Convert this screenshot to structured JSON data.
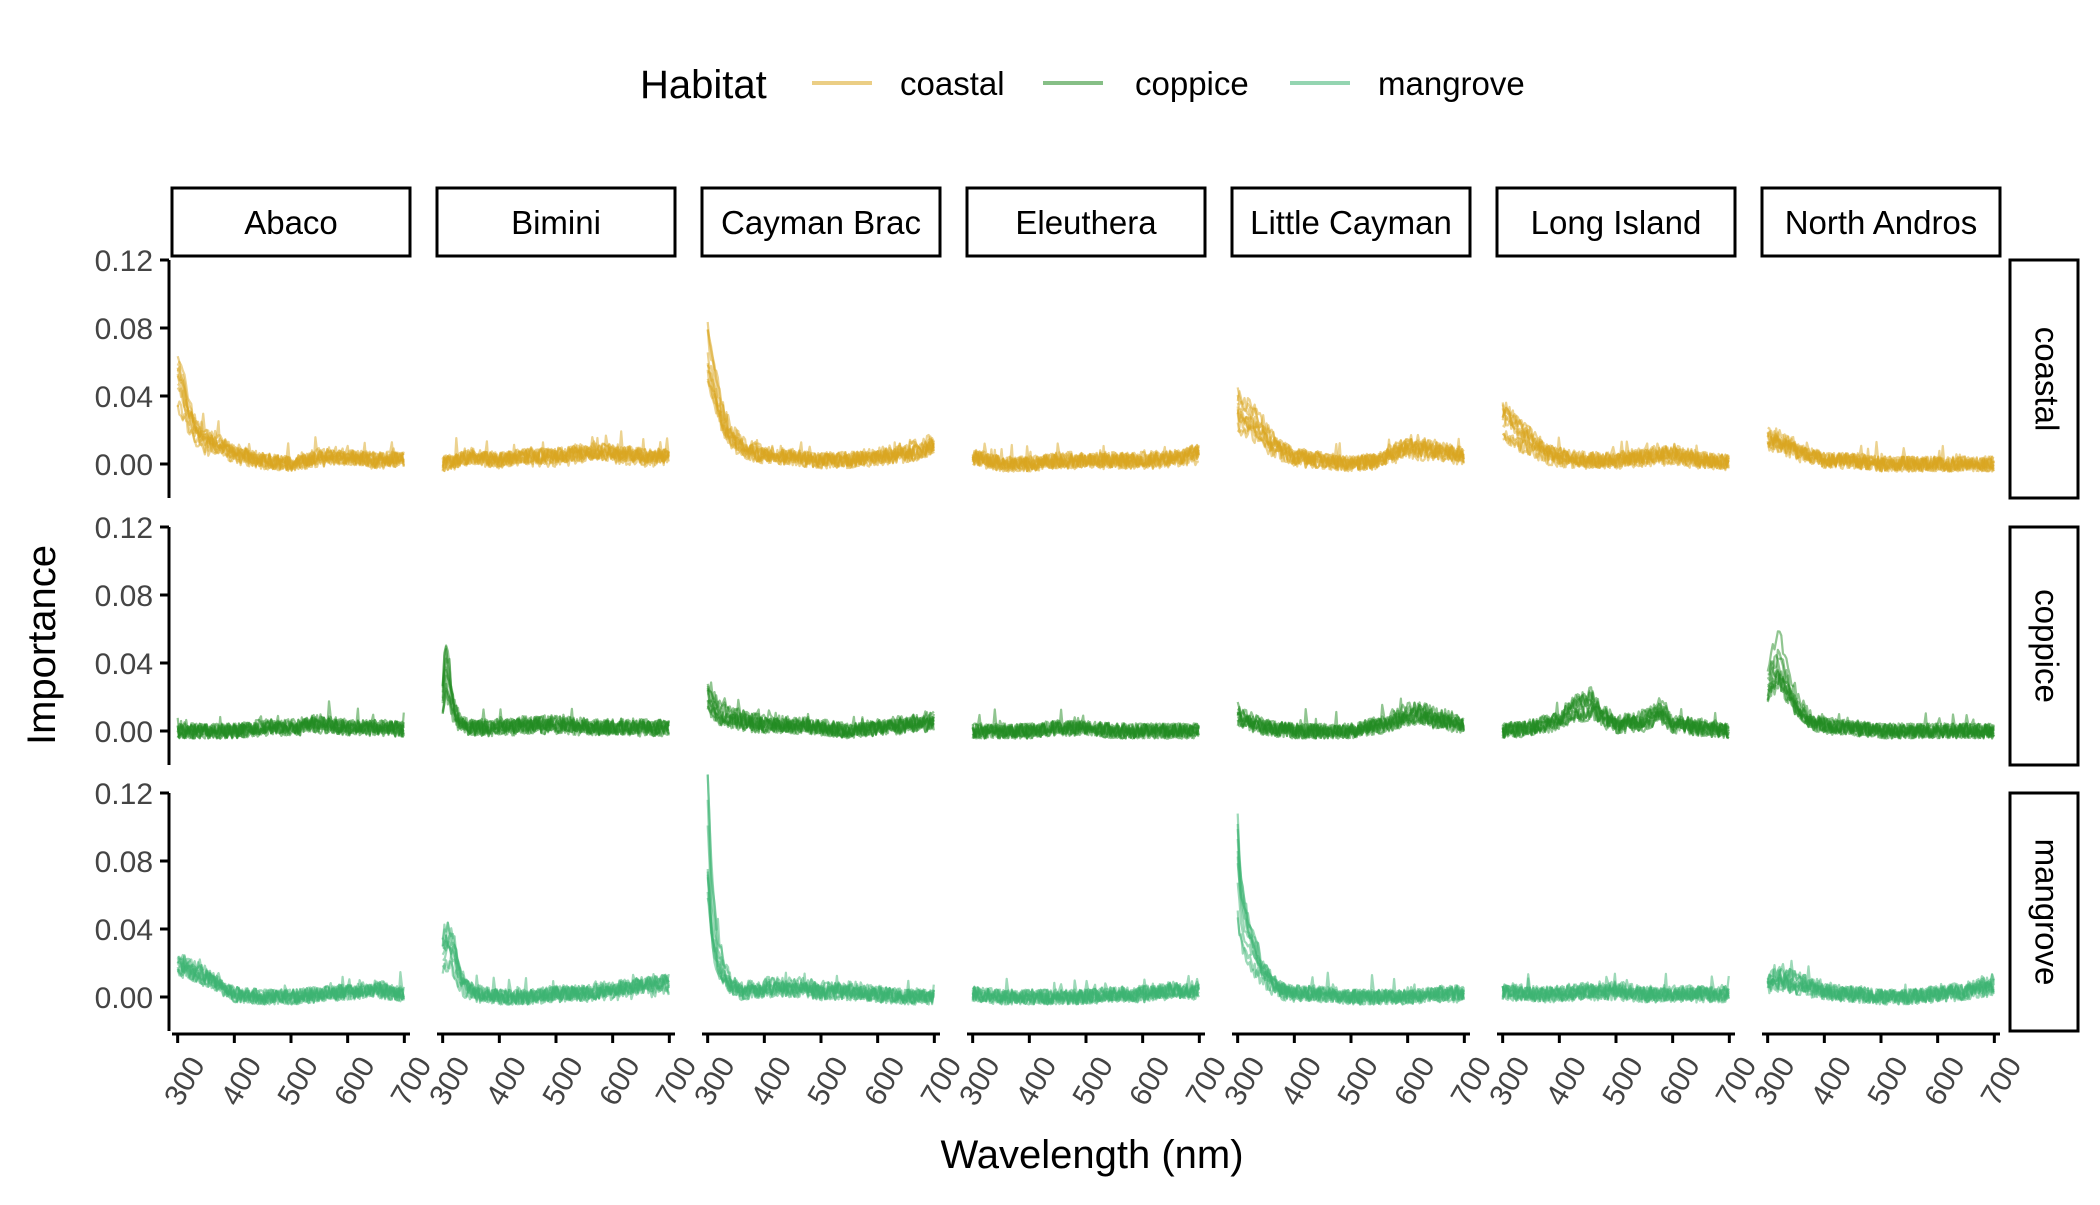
{
  "chart_data": {
    "type": "line",
    "xlabel": "Wavelength (nm)",
    "ylabel": "Importance",
    "xlim": [
      290,
      710
    ],
    "ylim": [
      -0.02,
      0.12
    ],
    "x_ticks": [
      300,
      400,
      500,
      600,
      700
    ],
    "y_ticks": [
      0.0,
      0.04,
      0.08,
      0.12
    ],
    "y_tick_labels": [
      "0.00",
      "0.04",
      "0.08",
      "0.12"
    ],
    "grid": false,
    "legend": {
      "title": "Habitat",
      "position": "top",
      "entries": [
        "coastal",
        "coppice",
        "mangrove"
      ]
    },
    "colors": {
      "coastal": "#DAA520",
      "coppice": "#228B22",
      "mangrove": "#3CB371"
    },
    "facet_columns": [
      "Abaco",
      "Bimini",
      "Cayman Brac",
      "Eleuthera",
      "Little Cayman",
      "Long Island",
      "North Andros"
    ],
    "facet_rows": [
      "coastal",
      "coppice",
      "mangrove"
    ],
    "lines_per_panel": 10,
    "panels": [
      {
        "row": "coastal",
        "column": "Abaco",
        "x": [
          300,
          310,
          320,
          330,
          340,
          360,
          380,
          400,
          450,
          500,
          550,
          600,
          650,
          700
        ],
        "y": [
          0.05,
          0.04,
          0.028,
          0.02,
          0.016,
          0.012,
          0.01,
          0.006,
          0.002,
          0.0,
          0.004,
          0.004,
          0.002,
          0.003
        ]
      },
      {
        "row": "coastal",
        "column": "Bimini",
        "x": [
          300,
          350,
          400,
          450,
          500,
          550,
          600,
          650,
          700
        ],
        "y": [
          0.0,
          0.004,
          0.002,
          0.004,
          0.004,
          0.006,
          0.006,
          0.004,
          0.004
        ]
      },
      {
        "row": "coastal",
        "column": "Cayman Brac",
        "x": [
          300,
          310,
          320,
          330,
          340,
          360,
          380,
          400,
          450,
          500,
          550,
          600,
          650,
          700
        ],
        "y": [
          0.06,
          0.045,
          0.032,
          0.022,
          0.015,
          0.01,
          0.006,
          0.005,
          0.004,
          0.002,
          0.002,
          0.004,
          0.006,
          0.01
        ]
      },
      {
        "row": "coastal",
        "column": "Eleuthera",
        "x": [
          300,
          350,
          400,
          450,
          500,
          550,
          600,
          650,
          700
        ],
        "y": [
          0.004,
          0.0,
          0.0,
          0.002,
          0.002,
          0.002,
          0.002,
          0.003,
          0.006
        ]
      },
      {
        "row": "coastal",
        "column": "Little Cayman",
        "x": [
          300,
          320,
          340,
          360,
          380,
          400,
          450,
          500,
          550,
          600,
          650,
          700
        ],
        "y": [
          0.03,
          0.025,
          0.02,
          0.012,
          0.008,
          0.004,
          0.002,
          0.0,
          0.002,
          0.01,
          0.008,
          0.004
        ]
      },
      {
        "row": "coastal",
        "column": "Long Island",
        "x": [
          300,
          320,
          340,
          360,
          380,
          400,
          450,
          500,
          550,
          600,
          650,
          700
        ],
        "y": [
          0.025,
          0.02,
          0.015,
          0.01,
          0.006,
          0.004,
          0.002,
          0.002,
          0.004,
          0.006,
          0.002,
          0.001
        ]
      },
      {
        "row": "coastal",
        "column": "North Andros",
        "x": [
          300,
          320,
          340,
          360,
          380,
          400,
          450,
          500,
          550,
          600,
          650,
          700
        ],
        "y": [
          0.015,
          0.012,
          0.01,
          0.006,
          0.004,
          0.002,
          0.002,
          0.0,
          0.0,
          0.0,
          0.0,
          0.0
        ]
      },
      {
        "row": "coppice",
        "column": "Abaco",
        "x": [
          300,
          350,
          400,
          450,
          500,
          550,
          600,
          650,
          700
        ],
        "y": [
          0.0,
          0.0,
          0.0,
          0.002,
          0.002,
          0.004,
          0.002,
          0.002,
          0.001
        ]
      },
      {
        "row": "coppice",
        "column": "Bimini",
        "x": [
          300,
          305,
          310,
          320,
          330,
          350,
          400,
          450,
          500,
          550,
          600,
          650,
          700
        ],
        "y": [
          0.02,
          0.04,
          0.03,
          0.012,
          0.005,
          0.002,
          0.002,
          0.004,
          0.004,
          0.002,
          0.002,
          0.002,
          0.002
        ]
      },
      {
        "row": "coppice",
        "column": "Cayman Brac",
        "x": [
          300,
          310,
          320,
          340,
          360,
          400,
          450,
          500,
          550,
          600,
          650,
          700
        ],
        "y": [
          0.022,
          0.016,
          0.01,
          0.008,
          0.006,
          0.004,
          0.004,
          0.002,
          0.0,
          0.002,
          0.004,
          0.006
        ]
      },
      {
        "row": "coppice",
        "column": "Eleuthera",
        "x": [
          300,
          350,
          400,
          450,
          500,
          550,
          600,
          650,
          700
        ],
        "y": [
          0.0,
          0.0,
          0.0,
          0.002,
          0.002,
          0.0,
          0.0,
          0.0,
          0.0
        ]
      },
      {
        "row": "coppice",
        "column": "Little Cayman",
        "x": [
          300,
          320,
          340,
          360,
          400,
          450,
          500,
          550,
          600,
          620,
          650,
          700
        ],
        "y": [
          0.01,
          0.006,
          0.004,
          0.002,
          0.0,
          0.0,
          0.0,
          0.004,
          0.01,
          0.012,
          0.008,
          0.004
        ]
      },
      {
        "row": "coppice",
        "column": "Long Island",
        "x": [
          300,
          350,
          400,
          430,
          460,
          480,
          500,
          550,
          580,
          600,
          650,
          700
        ],
        "y": [
          0.0,
          0.002,
          0.006,
          0.014,
          0.016,
          0.008,
          0.004,
          0.006,
          0.012,
          0.004,
          0.002,
          0.0
        ]
      },
      {
        "row": "coppice",
        "column": "North Andros",
        "x": [
          300,
          310,
          320,
          330,
          340,
          360,
          380,
          400,
          450,
          500,
          550,
          600,
          650,
          700
        ],
        "y": [
          0.03,
          0.04,
          0.045,
          0.035,
          0.025,
          0.012,
          0.006,
          0.004,
          0.002,
          0.0,
          0.0,
          0.0,
          0.0,
          0.0
        ]
      },
      {
        "row": "mangrove",
        "column": "Abaco",
        "x": [
          300,
          320,
          340,
          360,
          380,
          400,
          450,
          500,
          550,
          600,
          650,
          700
        ],
        "y": [
          0.025,
          0.022,
          0.018,
          0.014,
          0.008,
          0.002,
          0.0,
          0.0,
          0.002,
          0.004,
          0.006,
          0.002
        ]
      },
      {
        "row": "mangrove",
        "column": "Bimini",
        "x": [
          300,
          310,
          320,
          330,
          340,
          360,
          400,
          450,
          500,
          550,
          600,
          650,
          700
        ],
        "y": [
          0.025,
          0.03,
          0.024,
          0.012,
          0.006,
          0.002,
          0.0,
          0.0,
          0.002,
          0.002,
          0.004,
          0.006,
          0.008
        ]
      },
      {
        "row": "mangrove",
        "column": "Cayman Brac",
        "x": [
          300,
          303,
          306,
          310,
          315,
          320,
          330,
          340,
          360,
          380,
          400,
          450,
          500,
          550,
          600,
          650,
          700
        ],
        "y": [
          0.1,
          0.08,
          0.06,
          0.045,
          0.032,
          0.024,
          0.014,
          0.008,
          0.004,
          0.004,
          0.006,
          0.006,
          0.004,
          0.004,
          0.002,
          0.0,
          0.0
        ]
      },
      {
        "row": "mangrove",
        "column": "Eleuthera",
        "x": [
          300,
          350,
          400,
          450,
          500,
          550,
          600,
          650,
          700
        ],
        "y": [
          0.002,
          0.0,
          0.0,
          0.0,
          0.0,
          0.002,
          0.002,
          0.004,
          0.004
        ]
      },
      {
        "row": "mangrove",
        "column": "Little Cayman",
        "x": [
          300,
          303,
          306,
          310,
          320,
          330,
          340,
          360,
          380,
          400,
          450,
          500,
          550,
          600,
          650,
          700
        ],
        "y": [
          0.08,
          0.065,
          0.055,
          0.045,
          0.035,
          0.026,
          0.018,
          0.008,
          0.004,
          0.002,
          0.002,
          0.0,
          0.0,
          0.0,
          0.002,
          0.002
        ]
      },
      {
        "row": "mangrove",
        "column": "Long Island",
        "x": [
          300,
          350,
          400,
          450,
          500,
          550,
          600,
          650,
          700
        ],
        "y": [
          0.004,
          0.002,
          0.002,
          0.004,
          0.004,
          0.002,
          0.002,
          0.002,
          0.002
        ]
      },
      {
        "row": "mangrove",
        "column": "North Andros",
        "x": [
          300,
          320,
          340,
          360,
          400,
          450,
          500,
          550,
          600,
          650,
          700
        ],
        "y": [
          0.01,
          0.012,
          0.01,
          0.008,
          0.004,
          0.002,
          0.0,
          0.0,
          0.002,
          0.004,
          0.008
        ]
      }
    ]
  }
}
